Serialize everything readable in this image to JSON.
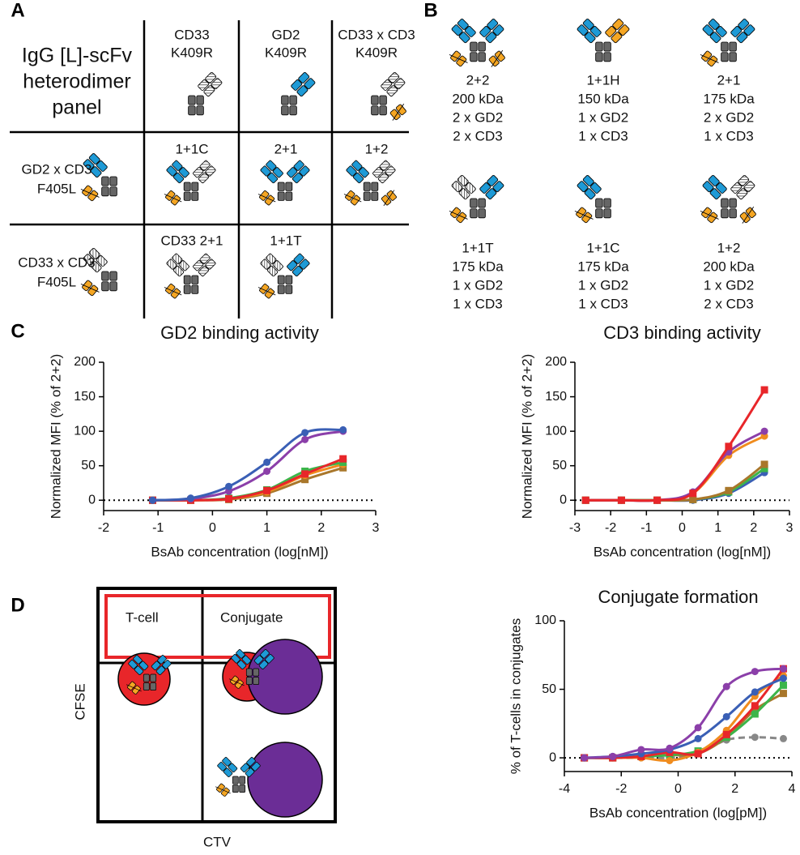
{
  "panel_labels": [
    "A",
    "B",
    "C",
    "D"
  ],
  "table_a": {
    "corner": [
      "IgG [L]-scFv",
      "heterodimer",
      "panel"
    ],
    "columns": [
      [
        "CD33",
        "K409R"
      ],
      [
        "GD2",
        "K409R"
      ],
      [
        "CD33 x CD3",
        "K409R"
      ]
    ],
    "rows": [
      [
        "GD2 x CD3",
        "F405L"
      ],
      [
        "CD33 x CD3",
        "F405L"
      ]
    ],
    "cells": [
      [
        {
          "text": "1+1C",
          "color": "#a9772b"
        },
        {
          "text": "2+1",
          "color": "#3a5fb5"
        },
        {
          "text": "1+2",
          "color": "#f08c1e"
        }
      ],
      [
        {
          "text": "CD33 2+1",
          "color": "#3a5fb5"
        },
        {
          "text": "1+1T",
          "color": "#3cb54a"
        }
      ]
    ]
  },
  "panel_b": [
    {
      "lines": [
        "2+2",
        "200 kDa",
        "2 x GD2",
        "2 x CD3"
      ],
      "color": "#8b3fa9"
    },
    {
      "lines": [
        "1+1H",
        "150 kDa",
        "1 x GD2",
        "1 x CD3"
      ],
      "color": "#e8262a"
    },
    {
      "lines": [
        "2+1",
        "175 kDa",
        "2 x GD2",
        "1 x CD3"
      ],
      "color": "#3a5fb5"
    },
    {
      "lines": [
        "1+1T",
        "175 kDa",
        "1 x GD2",
        "1 x CD3"
      ],
      "color": "#3cb54a"
    },
    {
      "lines": [
        "1+1C",
        "175 kDa",
        "1 x GD2",
        "1 x CD3"
      ],
      "color": "#a9772b"
    },
    {
      "lines": [
        "1+2",
        "200 kDa",
        "1 x GD2",
        "2 x CD3"
      ],
      "color": "#f08c1e"
    }
  ],
  "panel_d": {
    "quadrant_labels": [
      "T-cell",
      "Conjugate"
    ],
    "y_label": "CFSE",
    "x_label": "CTV"
  },
  "chart_data": [
    {
      "type": "line",
      "title": "GD2 binding activity",
      "xlabel": "BsAb concentration (log[nM])",
      "ylabel": "Normalized MFI (% of 2+2)",
      "x": [
        -1.1,
        -0.4,
        0.3,
        1.0,
        1.7,
        2.4
      ],
      "series": [
        {
          "color": "#a9772b",
          "marker": "square",
          "values": [
            0,
            0,
            1,
            10,
            30,
            47
          ]
        },
        {
          "color": "#f08c1e",
          "marker": "circle",
          "values": [
            0,
            0,
            2,
            12,
            36,
            52
          ]
        },
        {
          "color": "#3cb54a",
          "marker": "square",
          "values": [
            0,
            0,
            3,
            15,
            42,
            55
          ]
        },
        {
          "color": "#e8262a",
          "marker": "square",
          "values": [
            0,
            0,
            2,
            14,
            38,
            60
          ]
        },
        {
          "color": "#8b3fa9",
          "marker": "circle",
          "values": [
            0,
            2,
            13,
            42,
            88,
            100
          ]
        },
        {
          "color": "#3a5fb5",
          "marker": "circle",
          "values": [
            0,
            3,
            20,
            55,
            98,
            102
          ]
        }
      ],
      "xlim": [
        -2,
        3
      ],
      "xticks": [
        -2,
        -1,
        0,
        1,
        2,
        3
      ],
      "ylim": [
        -15,
        200
      ],
      "yticks": [
        0,
        50,
        100,
        150,
        200
      ],
      "reference_line": 0
    },
    {
      "type": "line",
      "title": "CD3 binding activity",
      "xlabel": "BsAb concentration (log[nM])",
      "ylabel": "Normalized MFI (% of 2+2)",
      "x": [
        -2.7,
        -1.7,
        -0.7,
        0.3,
        1.3,
        2.3
      ],
      "series": [
        {
          "color": "#3a5fb5",
          "marker": "circle",
          "values": [
            0,
            0,
            0,
            0,
            10,
            40
          ]
        },
        {
          "color": "#3cb54a",
          "marker": "square",
          "values": [
            0,
            0,
            0,
            1,
            12,
            46
          ]
        },
        {
          "color": "#a9772b",
          "marker": "square",
          "values": [
            0,
            0,
            0,
            1,
            14,
            52
          ]
        },
        {
          "color": "#f08c1e",
          "marker": "circle",
          "values": [
            0,
            0,
            0,
            10,
            65,
            93
          ]
        },
        {
          "color": "#8b3fa9",
          "marker": "circle",
          "values": [
            0,
            0,
            0,
            12,
            70,
            100
          ]
        },
        {
          "color": "#e8262a",
          "marker": "square",
          "values": [
            0,
            0,
            0,
            10,
            78,
            160
          ]
        }
      ],
      "xlim": [
        -3,
        3
      ],
      "xticks": [
        -3,
        -2,
        -1,
        0,
        1,
        2,
        3
      ],
      "ylim": [
        -15,
        200
      ],
      "yticks": [
        0,
        50,
        100,
        150,
        200
      ],
      "reference_line": 0
    },
    {
      "type": "line",
      "title": "Conjugate formation",
      "xlabel": "BsAb concentration (log[pM])",
      "ylabel": "% of T-cells in conjugates",
      "x": [
        -3.3,
        -2.3,
        -1.3,
        -0.3,
        0.7,
        1.7,
        2.7,
        3.7
      ],
      "series": [
        {
          "color": "#888888",
          "marker": "circle",
          "dash": true,
          "values": [
            0,
            0,
            0,
            0,
            3,
            13,
            15,
            14
          ]
        },
        {
          "color": "#a9772b",
          "marker": "square",
          "values": [
            0,
            0,
            1,
            2,
            3,
            15,
            35,
            47
          ]
        },
        {
          "color": "#3cb54a",
          "marker": "square",
          "values": [
            0,
            0,
            1,
            2,
            5,
            15,
            32,
            53
          ]
        },
        {
          "color": "#f08c1e",
          "marker": "circle",
          "values": [
            0,
            0,
            0,
            -2,
            4,
            20,
            45,
            60
          ]
        },
        {
          "color": "#e8262a",
          "marker": "square",
          "values": [
            0,
            0,
            1,
            4,
            3,
            17,
            38,
            65
          ]
        },
        {
          "color": "#3a5fb5",
          "marker": "circle",
          "values": [
            0,
            1,
            3,
            6,
            14,
            30,
            48,
            58
          ]
        },
        {
          "color": "#8b3fa9",
          "marker": "circle",
          "values": [
            0,
            1,
            6,
            7,
            22,
            52,
            63,
            65
          ]
        }
      ],
      "xlim": [
        -4,
        4
      ],
      "xticks": [
        -4,
        -2,
        0,
        2,
        4
      ],
      "ylim": [
        -10,
        100
      ],
      "yticks": [
        0,
        50,
        100
      ],
      "reference_line": 0
    }
  ]
}
